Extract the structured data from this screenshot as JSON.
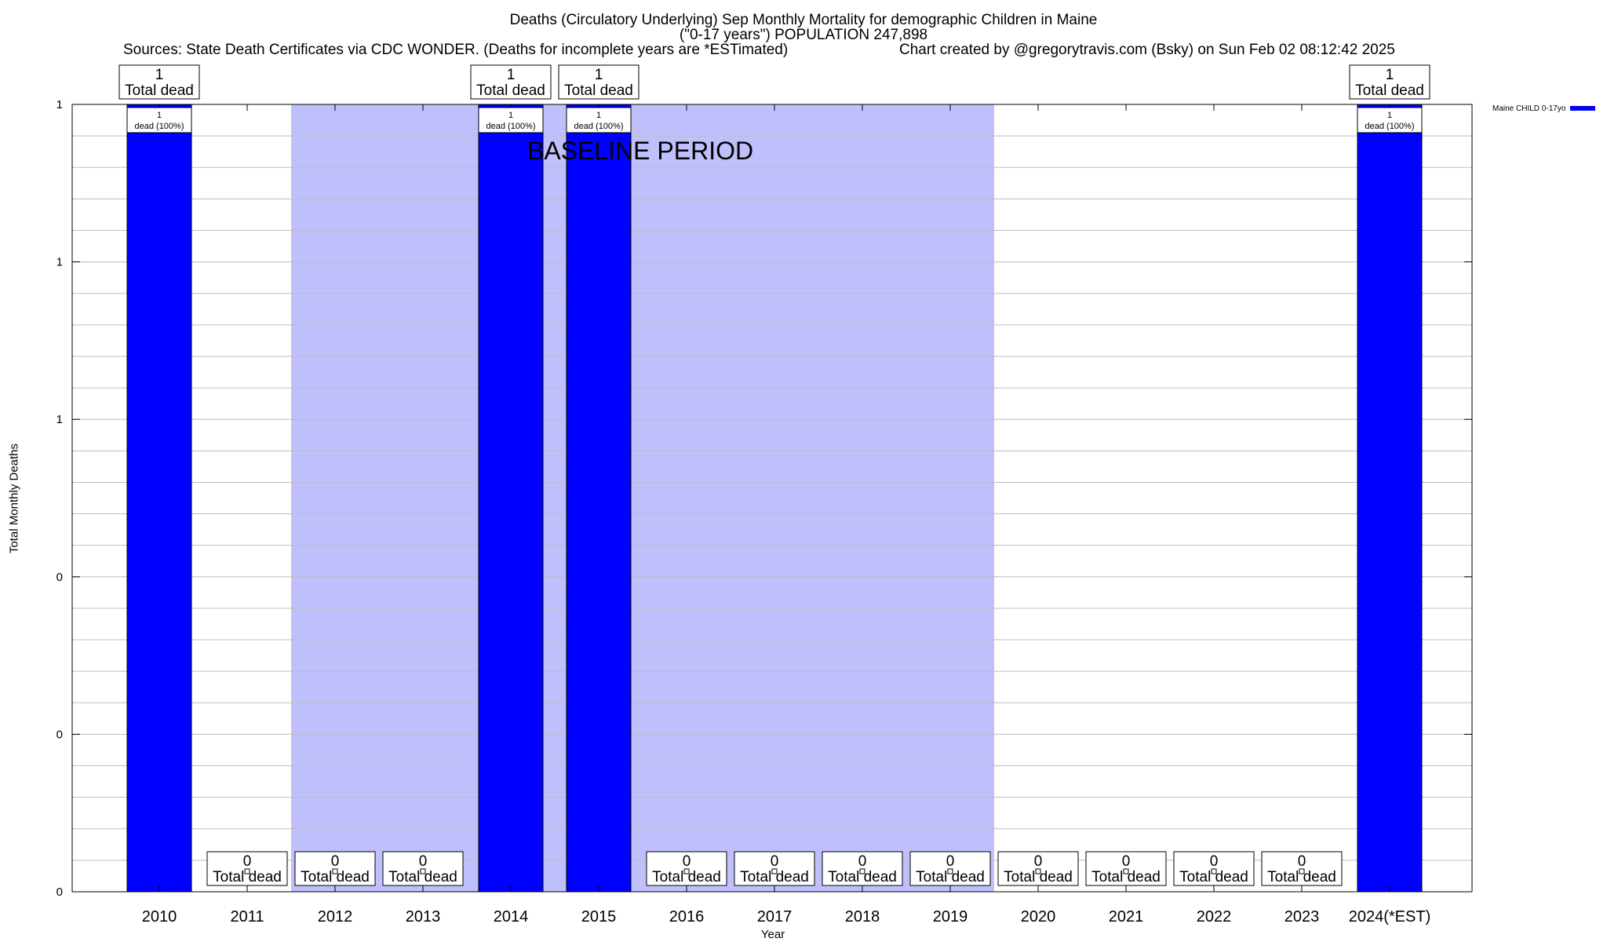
{
  "header": {
    "title_line1": "Deaths (Circulatory Underlying) Sep Monthly Mortality for demographic Children in Maine",
    "title_line2": "(\"0-17 years\") POPULATION 247,898",
    "sources": "Sources: State Death Certificates via CDC WONDER. (Deaths for incomplete years are *ESTimated)",
    "credit": "Chart created by @gregorytravis.com (Bsky) on Sun Feb 02 08:12:42 2025"
  },
  "colors": {
    "bar": "#0000ff",
    "baseline": "#bfbffb",
    "grid": "#bdbdbd"
  },
  "chart_data": {
    "type": "bar",
    "title": "Deaths (Circulatory Underlying) Sep Monthly Mortality for demographic Children in Maine",
    "xlabel": "Year",
    "ylabel": "Total Monthly Deaths",
    "categories": [
      "2010",
      "2011",
      "2012",
      "2013",
      "2014",
      "2015",
      "2016",
      "2017",
      "2018",
      "2019",
      "2020",
      "2021",
      "2022",
      "2023",
      "2024(*EST)"
    ],
    "series": [
      {
        "name": "Maine CHILD 0-17yo",
        "values": [
          1,
          0,
          0,
          0,
          1,
          1,
          0,
          0,
          0,
          0,
          0,
          0,
          0,
          0,
          1
        ]
      }
    ],
    "ylim": [
      0,
      1
    ],
    "y_tick_values": [
      0,
      0.2,
      0.4,
      0.6,
      0.8,
      1.0
    ],
    "y_tick_labels": [
      "0",
      "0",
      "0",
      "1",
      "1",
      "1"
    ],
    "total_label_suffix": "Total dead",
    "inner_label_suffix": "dead (100%)",
    "baseline_period": {
      "label": "BASELINE PERIOD",
      "from": "2012",
      "to": "2019"
    },
    "legend_position": "top-right",
    "grid": true
  }
}
